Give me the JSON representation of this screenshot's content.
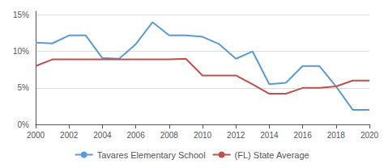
{
  "chart_data": {
    "type": "line",
    "x": [
      2000,
      2001,
      2002,
      2003,
      2004,
      2005,
      2006,
      2007,
      2008,
      2009,
      2010,
      2011,
      2012,
      2013,
      2014,
      2015,
      2016,
      2017,
      2018,
      2019,
      2020
    ],
    "series": [
      {
        "name": "Tavares Elementary School",
        "color": "#5b9bd5",
        "values": [
          0.112,
          0.111,
          0.122,
          0.122,
          0.091,
          0.09,
          0.11,
          0.14,
          0.122,
          0.122,
          0.12,
          0.11,
          0.09,
          0.1,
          0.055,
          0.057,
          0.08,
          0.08,
          0.052,
          0.02,
          0.02
        ]
      },
      {
        "name": "(FL) State Average",
        "color": "#c0504d",
        "values": [
          0.08,
          0.089,
          0.089,
          0.089,
          0.089,
          0.089,
          0.089,
          0.089,
          0.089,
          0.09,
          0.067,
          0.067,
          0.067,
          0.055,
          0.042,
          0.042,
          0.05,
          0.05,
          0.052,
          0.06,
          0.06
        ]
      }
    ],
    "xlim": [
      2000,
      2020
    ],
    "xticks": [
      2000,
      2002,
      2004,
      2006,
      2008,
      2010,
      2012,
      2014,
      2016,
      2018,
      2020
    ],
    "ylim": [
      0.0,
      0.155
    ],
    "yticks": [
      {
        "value": 0.0,
        "label": "0%"
      },
      {
        "value": 0.05,
        "label": "5%"
      },
      {
        "value": 0.1,
        "label": "10%"
      },
      {
        "value": 0.15,
        "label": "15%"
      }
    ],
    "grid": true,
    "legend": "bottom"
  }
}
